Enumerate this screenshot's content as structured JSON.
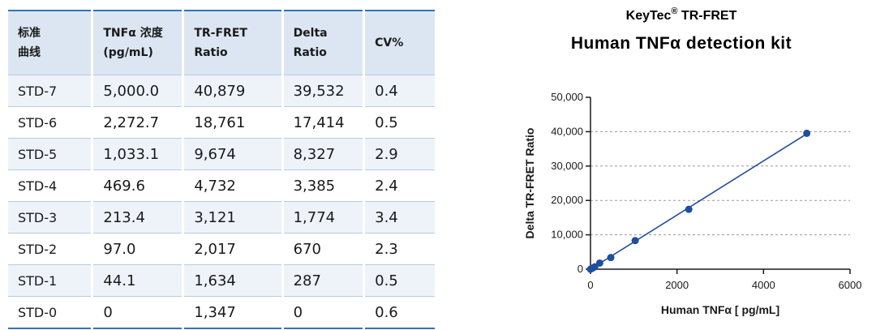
{
  "table": {
    "headers": [
      [
        "标准",
        "曲线"
      ],
      [
        "TNFα 浓度",
        "(pg/mL)"
      ],
      [
        "TR-FRET",
        "Ratio"
      ],
      [
        "Delta",
        "Ratio"
      ],
      [
        "CV%",
        ""
      ]
    ],
    "rows": [
      [
        "STD-7",
        "5,000.0",
        "40,879",
        "39,532",
        "0.4"
      ],
      [
        "STD-6",
        "2,272.7",
        "18,761",
        "17,414",
        "0.5"
      ],
      [
        "STD-5",
        "1,033.1",
        "9,674",
        "8,327",
        "2.9"
      ],
      [
        "STD-4",
        "469.6",
        "4,732",
        "3,385",
        "2.4"
      ],
      [
        "STD-3",
        "213.4",
        "3,121",
        "1,774",
        "3.4"
      ],
      [
        "STD-2",
        "97.0",
        "2,017",
        "670",
        "2.3"
      ],
      [
        "STD-1",
        "44.1",
        "1,634",
        "287",
        "0.5"
      ],
      [
        "STD-0",
        "0",
        "1,347",
        "0",
        "0.6"
      ]
    ]
  },
  "chart_data": {
    "type": "scatter",
    "title_line1": "KeyTec",
    "title_reg": "®",
    "title_line1_rest": " TR-FRET",
    "title": "Human TNFα detection kit",
    "xlabel": "Human TNFα [ pg/mL]",
    "ylabel": "Delta TR-FRET Ratio",
    "xlim": [
      0,
      6000
    ],
    "ylim": [
      0,
      50000
    ],
    "xticks": [
      0,
      2000,
      4000,
      6000
    ],
    "xtick_labels": [
      "0",
      "2000",
      "4000",
      "6000"
    ],
    "yticks": [
      0,
      10000,
      20000,
      30000,
      40000,
      50000
    ],
    "ytick_labels": [
      "0",
      "10,000",
      "20,000",
      "30,000",
      "40,000",
      "50,000"
    ],
    "grid": "horizontal dashed",
    "color": "#1f4e9c",
    "x": [
      5000.0,
      2272.7,
      1033.1,
      469.6,
      213.4,
      97.0,
      44.1,
      0
    ],
    "y": [
      39532,
      17414,
      8327,
      3385,
      1774,
      670,
      287,
      0
    ],
    "fit": "linear"
  }
}
